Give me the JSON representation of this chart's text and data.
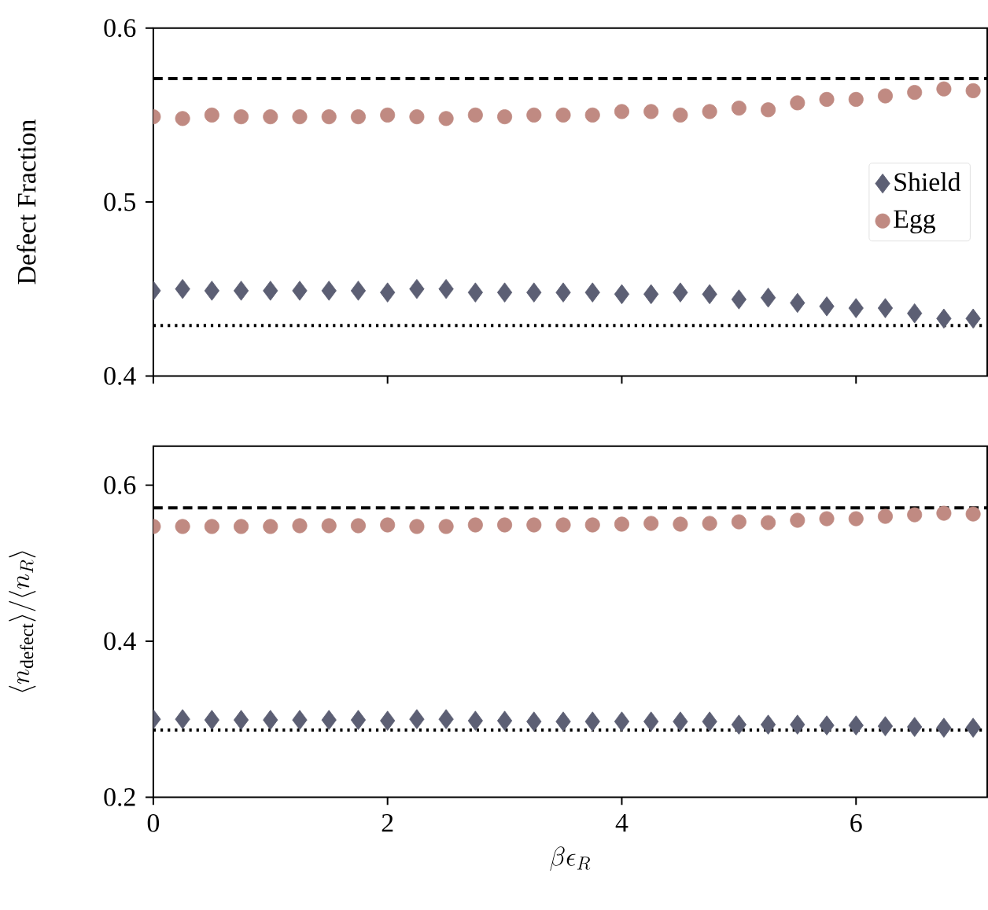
{
  "chart_data": [
    {
      "type": "scatter",
      "ylabel": "Defect Fraction",
      "x": [
        0,
        0.25,
        0.5,
        0.75,
        1,
        1.25,
        1.5,
        1.75,
        2,
        2.25,
        2.5,
        2.75,
        3,
        3.25,
        3.5,
        3.75,
        4,
        4.25,
        4.5,
        4.75,
        5,
        5.25,
        5.5,
        5.75,
        6,
        6.25,
        6.5,
        6.75,
        7
      ],
      "xlim": [
        0,
        7.12
      ],
      "xticks": [
        0,
        2,
        4,
        6
      ],
      "ylim": [
        0.4,
        0.6
      ],
      "yticks": [
        0.4,
        0.5,
        0.6
      ],
      "tick_labels": "y",
      "legend": "right",
      "series": [
        {
          "name": "Shield",
          "color": "#5c5f74",
          "marker": "diamond",
          "values": [
            0.449,
            0.45,
            0.449,
            0.449,
            0.449,
            0.449,
            0.449,
            0.449,
            0.448,
            0.45,
            0.45,
            0.448,
            0.448,
            0.448,
            0.448,
            0.448,
            0.447,
            0.447,
            0.448,
            0.447,
            0.444,
            0.445,
            0.442,
            0.44,
            0.439,
            0.439,
            0.436,
            0.433,
            0.433
          ]
        },
        {
          "name": "Egg",
          "color": "#c08a82",
          "marker": "circle",
          "values": [
            0.549,
            0.548,
            0.55,
            0.549,
            0.549,
            0.549,
            0.549,
            0.549,
            0.55,
            0.549,
            0.548,
            0.55,
            0.549,
            0.55,
            0.55,
            0.55,
            0.552,
            0.552,
            0.55,
            0.552,
            0.554,
            0.553,
            0.557,
            0.559,
            0.559,
            0.561,
            0.563,
            0.565,
            0.564
          ]
        }
      ],
      "ref_lines": [
        {
          "axis": "y",
          "value": 0.571,
          "color": "#000000",
          "line_style": "dashed"
        },
        {
          "axis": "y",
          "value": 0.429,
          "color": "#000000",
          "line_style": "dotted"
        }
      ]
    },
    {
      "type": "scatter",
      "ylabel": "\\langle n_{\\mathrm{defect}}\\rangle/\\langle n_R\\rangle",
      "xlabel": "\\beta\\epsilon_R",
      "x": [
        0,
        0.25,
        0.5,
        0.75,
        1,
        1.25,
        1.5,
        1.75,
        2,
        2.25,
        2.5,
        2.75,
        3,
        3.25,
        3.5,
        3.75,
        4,
        4.25,
        4.5,
        4.75,
        5,
        5.25,
        5.5,
        5.75,
        6,
        6.25,
        6.5,
        6.75,
        7
      ],
      "xlim": [
        0,
        7.12
      ],
      "xticks": [
        0,
        2,
        4,
        6
      ],
      "ylim": [
        0.2,
        0.65
      ],
      "yticks": [
        0.2,
        0.4,
        0.6
      ],
      "series": [
        {
          "color": "#5c5f74",
          "marker": "diamond",
          "values": [
            0.3,
            0.3,
            0.299,
            0.299,
            0.299,
            0.299,
            0.299,
            0.299,
            0.298,
            0.3,
            0.3,
            0.298,
            0.298,
            0.297,
            0.297,
            0.297,
            0.297,
            0.297,
            0.297,
            0.297,
            0.293,
            0.293,
            0.293,
            0.292,
            0.292,
            0.291,
            0.29,
            0.289,
            0.289
          ]
        },
        {
          "color": "#c08a82",
          "marker": "circle",
          "values": [
            0.547,
            0.547,
            0.547,
            0.547,
            0.547,
            0.548,
            0.548,
            0.548,
            0.549,
            0.547,
            0.547,
            0.549,
            0.549,
            0.549,
            0.549,
            0.549,
            0.55,
            0.551,
            0.55,
            0.551,
            0.553,
            0.552,
            0.555,
            0.557,
            0.557,
            0.56,
            0.562,
            0.564,
            0.563
          ]
        }
      ],
      "ref_lines": [
        {
          "axis": "y",
          "value": 0.571,
          "color": "#000000",
          "line_style": "dashed"
        },
        {
          "axis": "y",
          "value": 0.286,
          "color": "#000000",
          "line_style": "dotted"
        }
      ]
    }
  ]
}
